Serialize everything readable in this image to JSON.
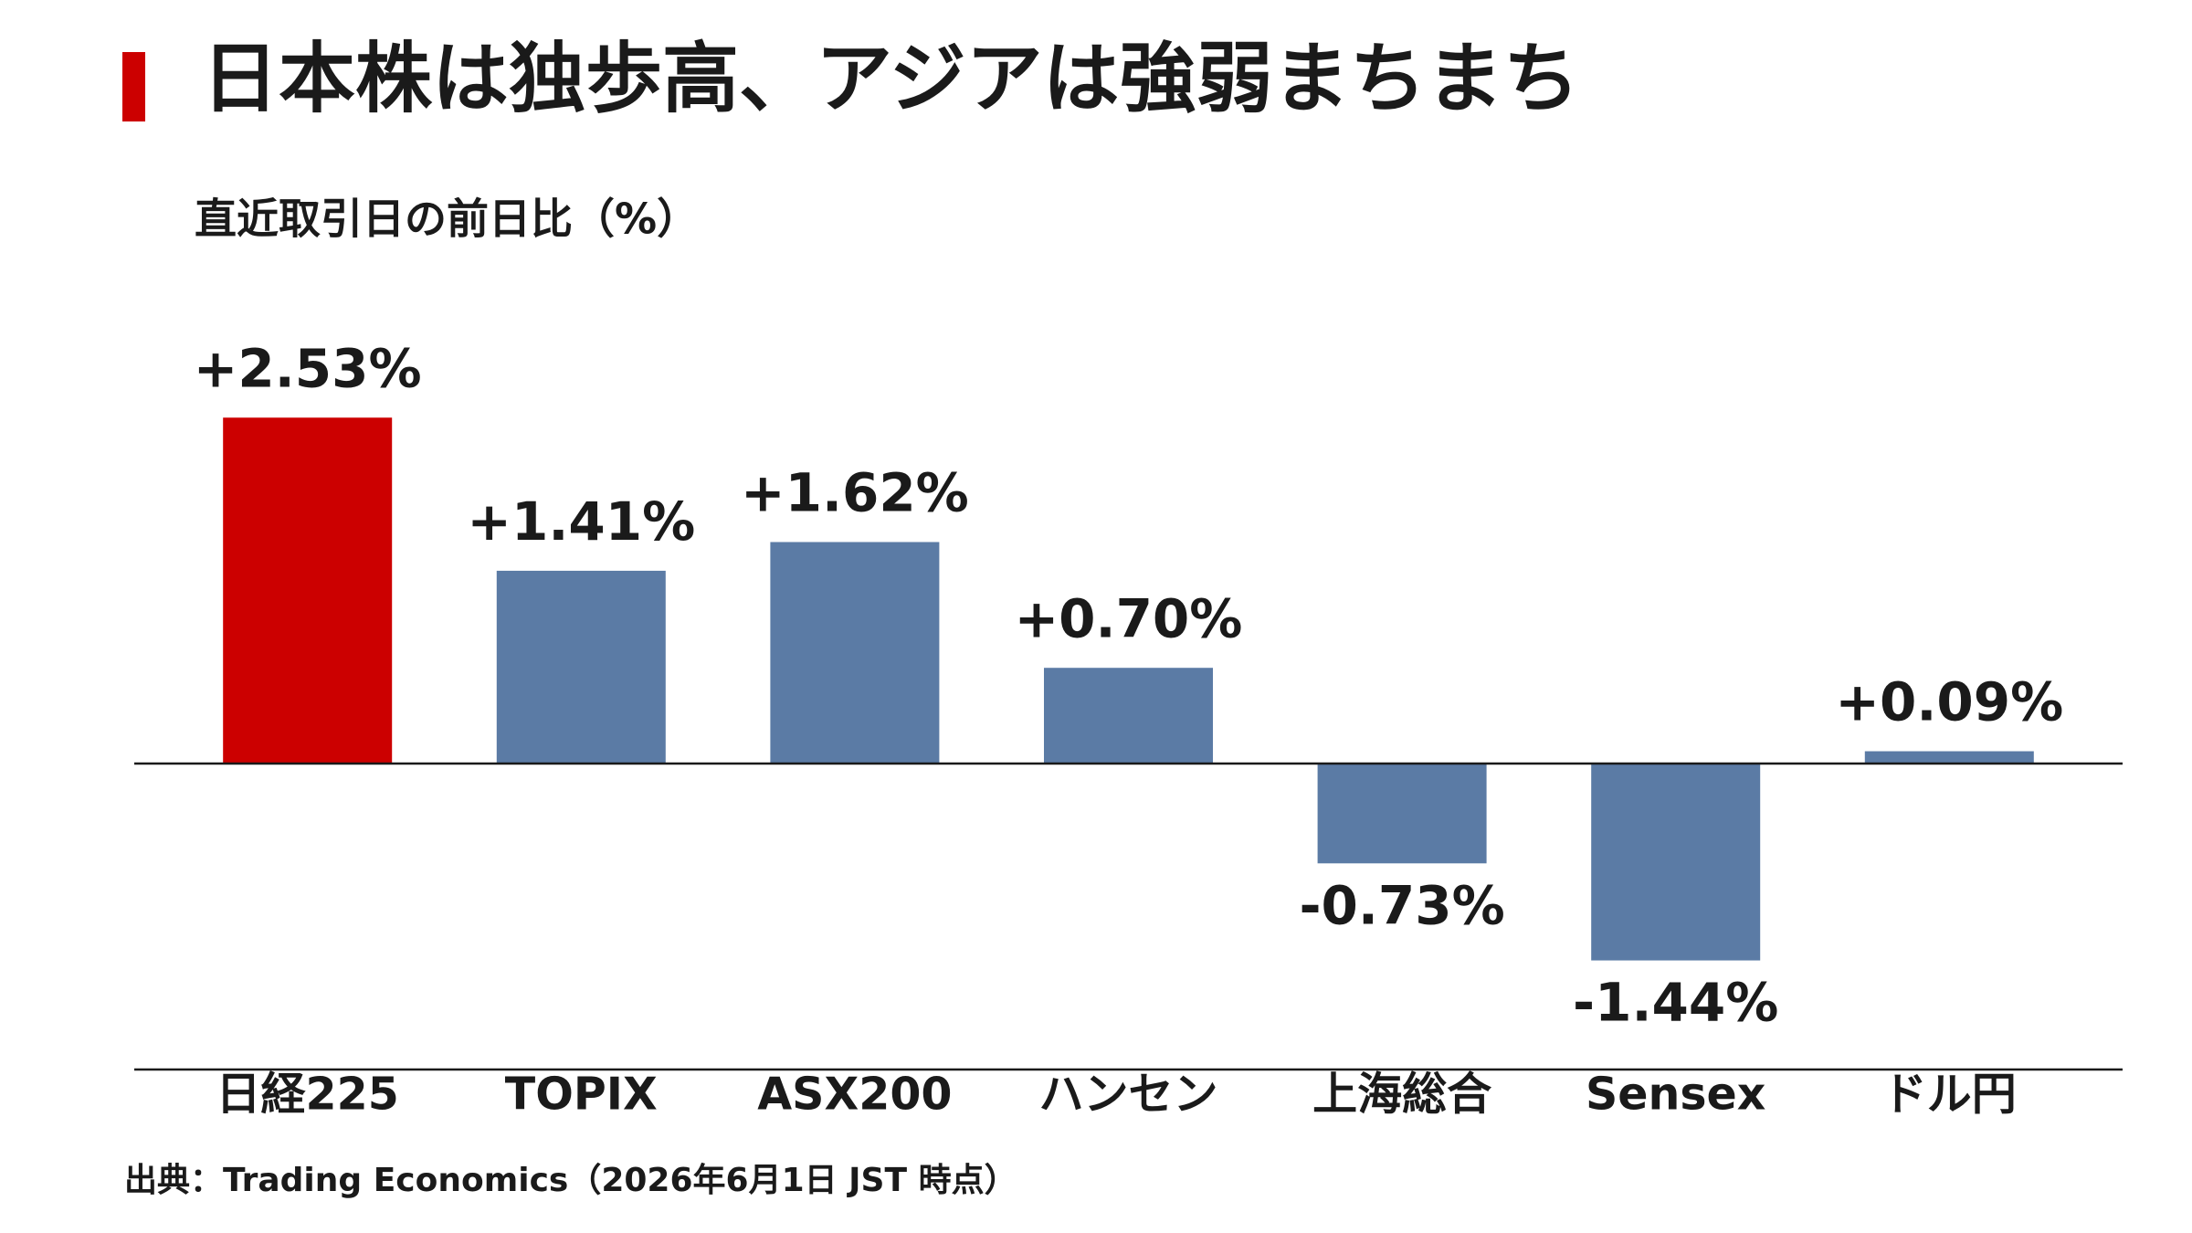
{
  "chart_data": {
    "type": "bar",
    "title": "日本株は独歩高、アジアは強弱まちまち",
    "subtitle": "直近取引日の前日比（%）",
    "source": "出典：Trading Economics（2026年6月1日 JST 時点）",
    "categories": [
      "日経225",
      "TOPIX",
      "ASX200",
      "ハンセン",
      "上海総合",
      "Sensex",
      "ドル円"
    ],
    "values": [
      2.53,
      1.41,
      1.62,
      0.7,
      -0.73,
      -1.44,
      0.09
    ],
    "value_labels": [
      "+2.53%",
      "+1.41%",
      "+1.62%",
      "+0.70%",
      "-0.73%",
      "-1.44%",
      "+0.09%"
    ],
    "colors": [
      "#cc0000",
      "#5b7ba5",
      "#5b7ba5",
      "#5b7ba5",
      "#5b7ba5",
      "#5b7ba5",
      "#5b7ba5"
    ]
  }
}
